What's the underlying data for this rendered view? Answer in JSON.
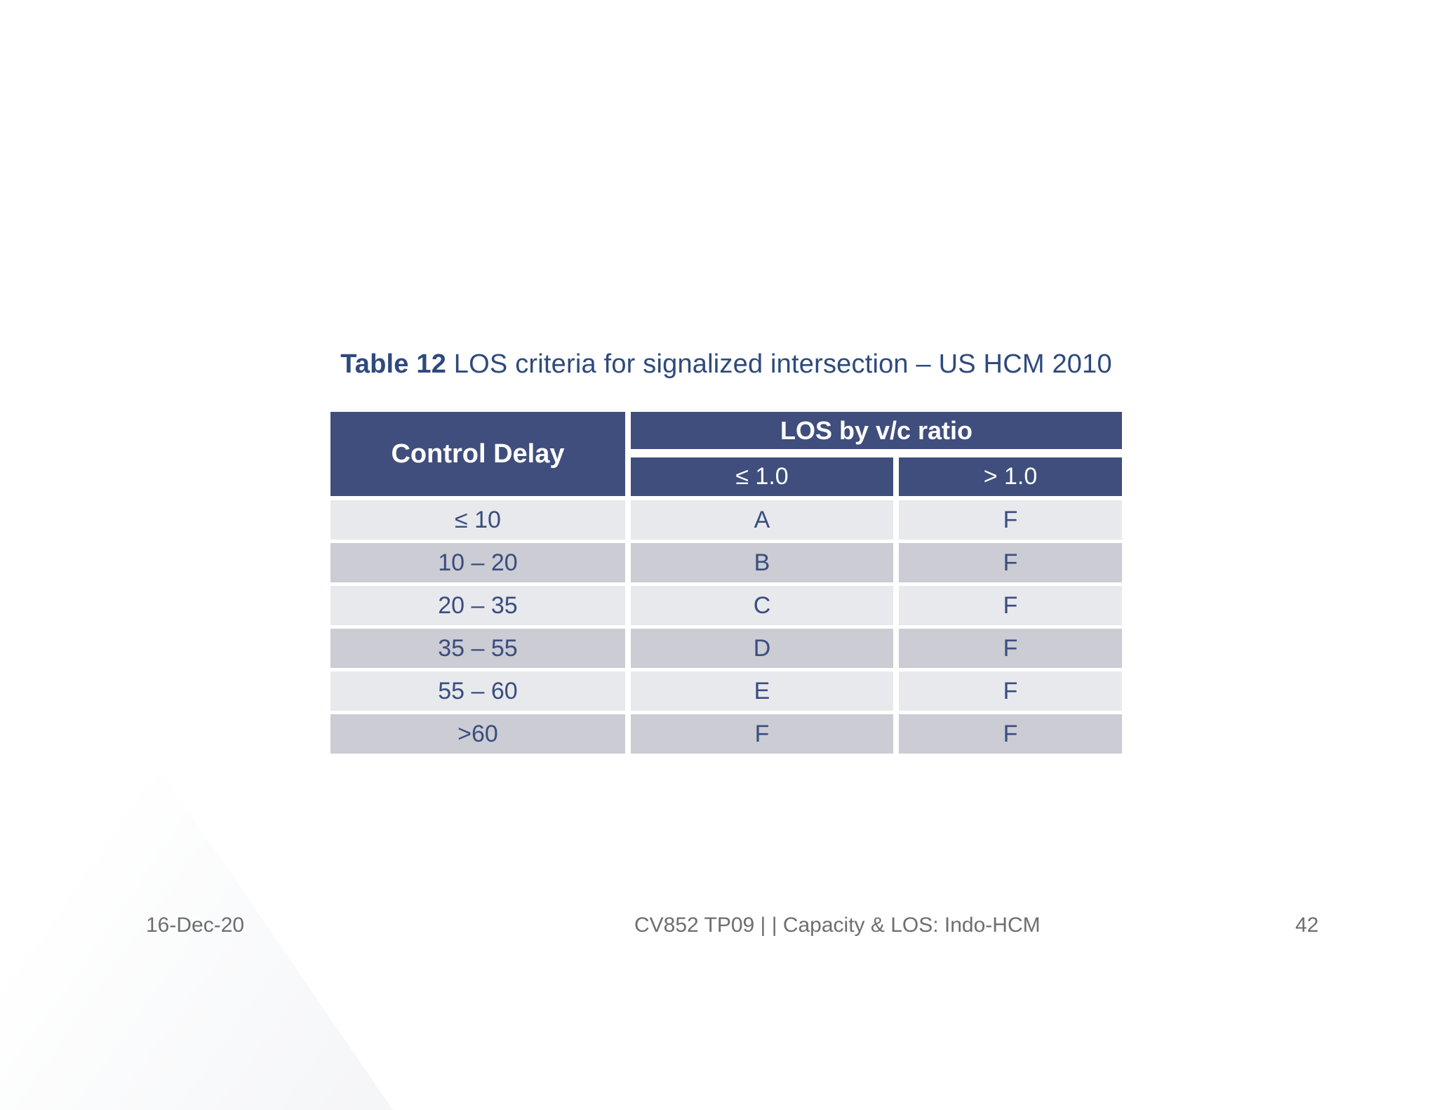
{
  "slide": {
    "title": {
      "prefix": "Table 12",
      "rest": " LOS criteria for signalized intersection – US HCM 2010"
    },
    "table": {
      "header": {
        "col1": "Control Delay",
        "group": "LOS by v/c ratio",
        "sub1": "≤ 1.0",
        "sub2": "> 1.0"
      },
      "rows": [
        {
          "delay": "≤ 10",
          "los_le": "A",
          "los_gt": "F"
        },
        {
          "delay": "10 – 20",
          "los_le": "B",
          "los_gt": "F"
        },
        {
          "delay": "20 – 35",
          "los_le": "C",
          "los_gt": "F"
        },
        {
          "delay": "35 – 55",
          "los_le": "D",
          "los_gt": "F"
        },
        {
          "delay": "55 – 60",
          "los_le": "E",
          "los_gt": "F"
        },
        {
          "delay": ">60",
          "los_le": "F",
          "los_gt": "F"
        }
      ]
    },
    "footer": {
      "date": "16-Dec-20",
      "center": "CV852 TP09 | |  Capacity & LOS: Indo-HCM",
      "page": "42"
    },
    "colors": {
      "header_bg": "#3f4e7c",
      "row_light": "#e8e9ed",
      "row_dark": "#cbccd4",
      "cell_text": "#3a4d7e",
      "title_text": "#2e4a7d",
      "footer_text": "#6e6e6e"
    }
  }
}
